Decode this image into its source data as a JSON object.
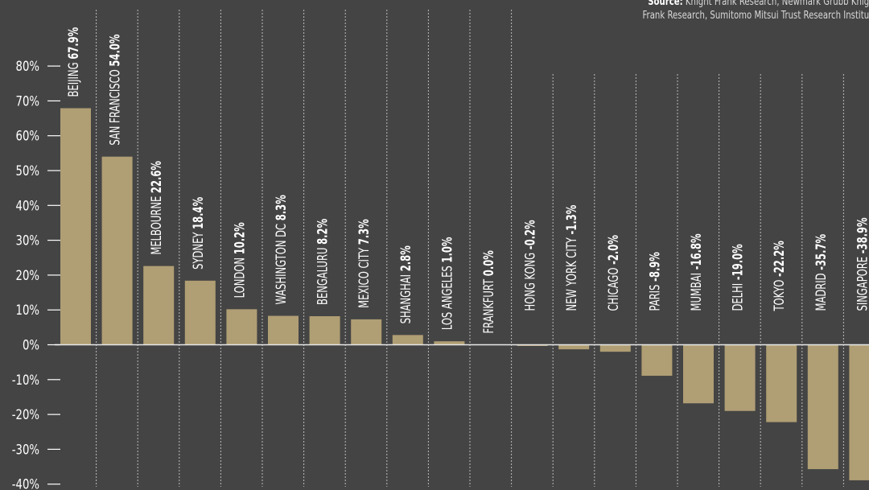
{
  "source": {
    "label": "Source:",
    "line1": "Knight Frank Research, Newmark Grubb Knig",
    "line2": "Frank Research, Sumitomo Mitsui Trust Research Institu"
  },
  "colors": {
    "background": "#444444",
    "bar": "#b09e74",
    "text": "#ffffff",
    "guide": "#bbbbbb"
  },
  "chart_data": {
    "type": "bar",
    "orientation": "vertical",
    "grid": false,
    "ylim": [
      -40,
      80
    ],
    "yticks": [
      {
        "value": 80,
        "label": "80%"
      },
      {
        "value": 70,
        "label": "70%"
      },
      {
        "value": 60,
        "label": "60%"
      },
      {
        "value": 50,
        "label": "50%"
      },
      {
        "value": 40,
        "label": "40%"
      },
      {
        "value": 30,
        "label": "30%"
      },
      {
        "value": 20,
        "label": "20%"
      },
      {
        "value": 10,
        "label": "10%"
      },
      {
        "value": 0,
        "label": "0%"
      },
      {
        "value": -10,
        "label": "-10%"
      },
      {
        "value": -20,
        "label": "-20%"
      },
      {
        "value": -30,
        "label": "-30%"
      },
      {
        "value": -40,
        "label": "-40%"
      }
    ],
    "bars": [
      {
        "city": "BEIJING",
        "label": "67.9%",
        "value": 67.9
      },
      {
        "city": "SAN FRANCISCO",
        "label": "54.0%",
        "value": 54.0
      },
      {
        "city": "MELBOURNE",
        "label": "22.6%",
        "value": 22.6
      },
      {
        "city": "SYDNEY",
        "label": "18.4%",
        "value": 18.4
      },
      {
        "city": "LONDON",
        "label": "10.2%",
        "value": 10.2
      },
      {
        "city": "WASHINGTON DC",
        "label": "8.3%",
        "value": 8.3
      },
      {
        "city": "BENGALURU",
        "label": "8.2%",
        "value": 8.2
      },
      {
        "city": "MEXICO CITY",
        "label": "7.3%",
        "value": 7.3
      },
      {
        "city": "SHANGHAI",
        "label": "2.8%",
        "value": 2.8
      },
      {
        "city": "LOS ANGELES",
        "label": "1.0%",
        "value": 1.0
      },
      {
        "city": "FRANKFURT",
        "label": "0.0%",
        "value": 0.0
      },
      {
        "city": "HONG KONG",
        "label": "-0.2%",
        "value": -0.2
      },
      {
        "city": "NEW YORK CITY",
        "label": "-1.3%",
        "value": -1.3
      },
      {
        "city": "CHICAGO",
        "label": "-2.0%",
        "value": -2.0
      },
      {
        "city": "PARIS",
        "label": "-8.9%",
        "value": -8.9
      },
      {
        "city": "MUMBAI",
        "label": "-16.8%",
        "value": -16.8
      },
      {
        "city": "DELHI",
        "label": "-19.0%",
        "value": -19.0
      },
      {
        "city": "TOKYO",
        "label": "-22.2%",
        "value": -22.2
      },
      {
        "city": "MADRID",
        "label": "-35.7%",
        "value": -35.7
      },
      {
        "city": "SINGAPORE",
        "label": "-38.9%",
        "value": -38.9
      }
    ]
  }
}
